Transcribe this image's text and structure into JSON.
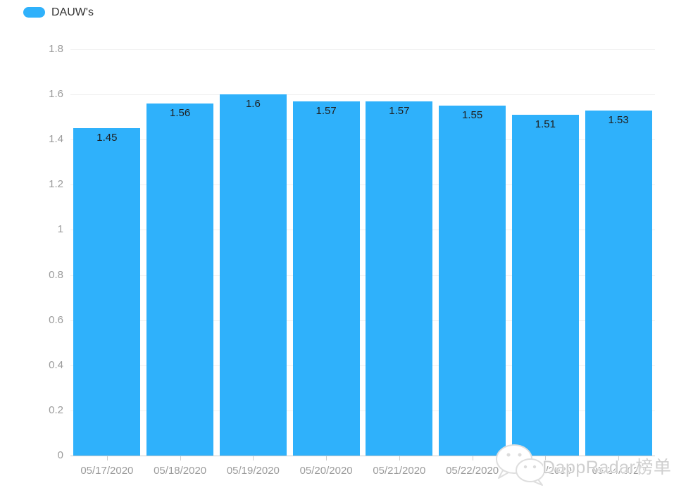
{
  "legend": {
    "label": "DAUW's",
    "swatch_color": "#2fb1fb"
  },
  "watermark": {
    "text": "DappRadar榜单",
    "icon": "wechat-icon"
  },
  "chart_data": {
    "type": "bar",
    "title": "",
    "xlabel": "",
    "ylabel": "",
    "series_name": "DAUW's",
    "categories": [
      "05/17/2020",
      "05/18/2020",
      "05/19/2020",
      "05/20/2020",
      "05/21/2020",
      "05/22/2020",
      "05/23/2020",
      "05/24/2020"
    ],
    "values": [
      1.45,
      1.56,
      1.6,
      1.57,
      1.57,
      1.55,
      1.51,
      1.53
    ],
    "value_labels": [
      "1.45",
      "1.56",
      "1.6",
      "1.57",
      "1.57",
      "1.55",
      "1.51",
      "1.53"
    ],
    "ylim": [
      0,
      1.8
    ],
    "ytick_step": 0.2,
    "ytick_labels": [
      "0",
      "0.2",
      "0.4",
      "0.6",
      "0.8",
      "1",
      "1.2",
      "1.4",
      "1.6",
      "1.8"
    ],
    "grid": true,
    "legend_position": "top-left",
    "bar_color": "#2fb1fb",
    "value_label_color": "#1f1f1f",
    "axis_label_color": "#9b9b9b",
    "gridline_color": "#f0f0f0",
    "axis_line_color": "#cccccc"
  }
}
